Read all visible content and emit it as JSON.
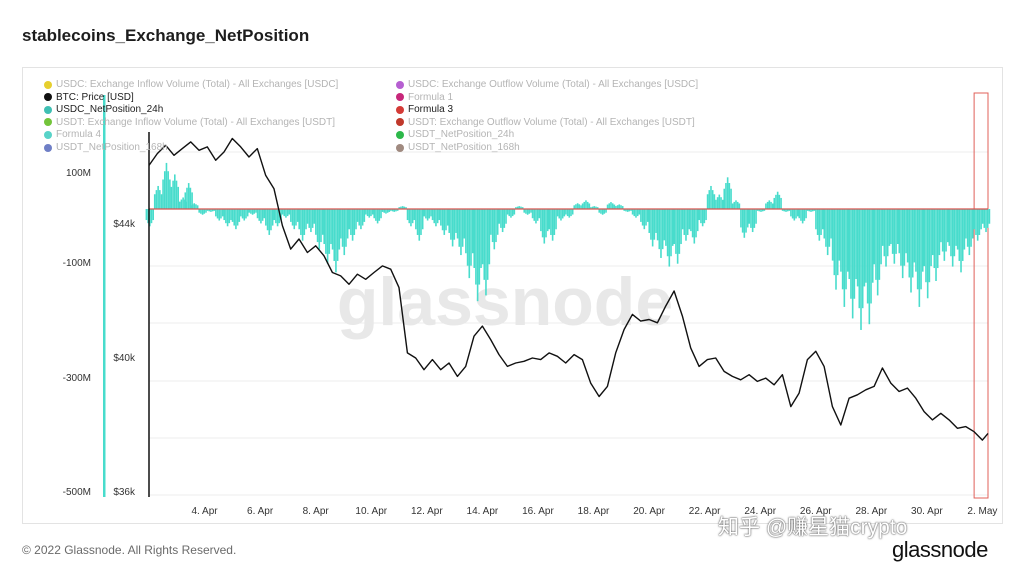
{
  "title": "stablecoins_Exchange_NetPosition",
  "footer": "© 2022 Glassnode. All Rights Reserved.",
  "brand": "glassnode",
  "watermark": "glassnode",
  "overlay_text": "知乎 @赚星猫crypto",
  "legend": [
    {
      "label": "USDC: Exchange Inflow Volume (Total) - All Exchanges [USDC]",
      "color": "#e6cf2e",
      "active": false
    },
    {
      "label": "USDC: Exchange Outflow Volume (Total) - All Exchanges [USDC]",
      "color": "#b65fd1",
      "active": false
    },
    {
      "label": "BTC: Price [USD]",
      "color": "#111111",
      "active": true
    },
    {
      "label": "Formula 1",
      "color": "#c7277a",
      "active": false
    },
    {
      "label": "USDC_NetPosition_24h",
      "color": "#3fbfb3",
      "active": true
    },
    {
      "label": "Formula 3",
      "color": "#d43b36",
      "active": true
    },
    {
      "label": "USDT: Exchange Inflow Volume (Total) - All Exchanges [USDT]",
      "color": "#73c43a",
      "active": false
    },
    {
      "label": "USDT: Exchange Outflow Volume (Total) - All Exchanges [USDT]",
      "color": "#c0392b",
      "active": false
    },
    {
      "label": "Formula 4",
      "color": "#58d3c8",
      "active": false
    },
    {
      "label": "USDT_NetPosition_24h",
      "color": "#2db84a",
      "active": false
    },
    {
      "label": "USDT_NetPosition_168h",
      "color": "#6f7fc6",
      "active": false
    },
    {
      "label": "USDT_NetPosition_168h",
      "color": "#a08a80",
      "active": false
    }
  ],
  "colors": {
    "bars": "#48dccc",
    "price": "#111111",
    "zero_line": "#d9534f",
    "highlight": "#e0605a",
    "grid": "#ececec"
  },
  "chart_data": {
    "type": "bar",
    "x_ticks": [
      "4. Apr",
      "6. Apr",
      "8. Apr",
      "10. Apr",
      "12. Apr",
      "14. Apr",
      "16. Apr",
      "18. Apr",
      "20. Apr",
      "22. Apr",
      "24. Apr",
      "26. Apr",
      "28. Apr",
      "30. Apr",
      "2. May"
    ],
    "y_left_ticks": [
      "100M",
      "-100M",
      "-300M",
      "-500M"
    ],
    "y_right_ticks": [
      "$44k",
      "$40k",
      "$36k"
    ],
    "y_left_range": [
      -500000000,
      150000000
    ],
    "y_right_range": [
      36000,
      48000
    ],
    "x_range_days": [
      2.0,
      32.2
    ],
    "grid": true,
    "highlight_range_days": [
      31.7,
      33.2
    ],
    "series": [
      {
        "name": "USDC_NetPosition_24h",
        "type": "bar",
        "points": [
          [
            2.0,
            -30
          ],
          [
            2.3,
            40
          ],
          [
            2.6,
            80
          ],
          [
            2.9,
            60
          ],
          [
            3.2,
            20
          ],
          [
            3.4,
            45
          ],
          [
            3.6,
            10
          ],
          [
            3.9,
            -10
          ],
          [
            4.2,
            -5
          ],
          [
            4.5,
            -20
          ],
          [
            4.8,
            -30
          ],
          [
            5.1,
            -35
          ],
          [
            5.4,
            -20
          ],
          [
            5.7,
            -10
          ],
          [
            6.0,
            -25
          ],
          [
            6.3,
            -45
          ],
          [
            6.6,
            -30
          ],
          [
            6.9,
            -15
          ],
          [
            7.2,
            -35
          ],
          [
            7.5,
            -55
          ],
          [
            7.8,
            -40
          ],
          [
            8.1,
            -70
          ],
          [
            8.4,
            -95
          ],
          [
            8.7,
            -110
          ],
          [
            9.0,
            -80
          ],
          [
            9.3,
            -55
          ],
          [
            9.6,
            -35
          ],
          [
            9.9,
            -15
          ],
          [
            10.2,
            -25
          ],
          [
            10.5,
            -8
          ],
          [
            10.8,
            -5
          ],
          [
            11.1,
            5
          ],
          [
            11.4,
            -30
          ],
          [
            11.7,
            -55
          ],
          [
            12.0,
            -20
          ],
          [
            12.3,
            -30
          ],
          [
            12.6,
            -45
          ],
          [
            12.9,
            -65
          ],
          [
            13.2,
            -80
          ],
          [
            13.5,
            -120
          ],
          [
            13.8,
            -160
          ],
          [
            14.1,
            -150
          ],
          [
            14.4,
            -70
          ],
          [
            14.7,
            -40
          ],
          [
            15.0,
            -15
          ],
          [
            15.3,
            5
          ],
          [
            15.6,
            -10
          ],
          [
            15.9,
            -25
          ],
          [
            16.2,
            -60
          ],
          [
            16.5,
            -55
          ],
          [
            16.8,
            -20
          ],
          [
            17.1,
            -15
          ],
          [
            17.4,
            10
          ],
          [
            17.7,
            15
          ],
          [
            18.0,
            5
          ],
          [
            18.3,
            -10
          ],
          [
            18.6,
            12
          ],
          [
            18.9,
            8
          ],
          [
            19.2,
            -5
          ],
          [
            19.5,
            -15
          ],
          [
            19.8,
            -35
          ],
          [
            20.1,
            -65
          ],
          [
            20.4,
            -85
          ],
          [
            20.7,
            -100
          ],
          [
            21.0,
            -95
          ],
          [
            21.3,
            -55
          ],
          [
            21.6,
            -60
          ],
          [
            21.9,
            -30
          ],
          [
            22.2,
            40
          ],
          [
            22.5,
            25
          ],
          [
            22.8,
            55
          ],
          [
            23.1,
            15
          ],
          [
            23.4,
            -50
          ],
          [
            23.7,
            -40
          ],
          [
            24.0,
            -5
          ],
          [
            24.3,
            15
          ],
          [
            24.6,
            30
          ],
          [
            24.9,
            -5
          ],
          [
            25.2,
            -20
          ],
          [
            25.5,
            -25
          ],
          [
            25.8,
            -5
          ],
          [
            26.1,
            -55
          ],
          [
            26.4,
            -80
          ],
          [
            26.7,
            -140
          ],
          [
            27.0,
            -170
          ],
          [
            27.3,
            -190
          ],
          [
            27.6,
            -210
          ],
          [
            27.9,
            -200
          ],
          [
            28.2,
            -150
          ],
          [
            28.5,
            -100
          ],
          [
            28.8,
            -95
          ],
          [
            29.1,
            -120
          ],
          [
            29.4,
            -145
          ],
          [
            29.7,
            -170
          ],
          [
            30.0,
            -155
          ],
          [
            30.3,
            -125
          ],
          [
            30.6,
            -90
          ],
          [
            30.9,
            -100
          ],
          [
            31.2,
            -110
          ],
          [
            31.5,
            -80
          ],
          [
            31.8,
            -55
          ],
          [
            32.1,
            -40
          ]
        ]
      },
      {
        "name": "BTC: Price [USD]",
        "type": "line",
        "points": [
          [
            2.0,
            45900
          ],
          [
            2.3,
            46250
          ],
          [
            2.6,
            46500
          ],
          [
            2.9,
            46200
          ],
          [
            3.2,
            46400
          ],
          [
            3.5,
            46600
          ],
          [
            3.8,
            46350
          ],
          [
            4.1,
            46450
          ],
          [
            4.4,
            46050
          ],
          [
            4.7,
            46300
          ],
          [
            5.0,
            46700
          ],
          [
            5.3,
            46450
          ],
          [
            5.6,
            46150
          ],
          [
            5.9,
            46400
          ],
          [
            6.2,
            45600
          ],
          [
            6.5,
            45200
          ],
          [
            6.8,
            44100
          ],
          [
            7.1,
            43400
          ],
          [
            7.4,
            43700
          ],
          [
            7.7,
            43300
          ],
          [
            8.0,
            43500
          ],
          [
            8.3,
            43200
          ],
          [
            8.6,
            42700
          ],
          [
            8.9,
            42600
          ],
          [
            9.2,
            42350
          ],
          [
            9.5,
            42650
          ],
          [
            9.8,
            42500
          ],
          [
            10.1,
            42700
          ],
          [
            10.4,
            42900
          ],
          [
            10.7,
            42800
          ],
          [
            11.0,
            42250
          ],
          [
            11.3,
            40300
          ],
          [
            11.6,
            40150
          ],
          [
            11.9,
            39800
          ],
          [
            12.2,
            40100
          ],
          [
            12.5,
            39800
          ],
          [
            12.8,
            40000
          ],
          [
            13.1,
            39600
          ],
          [
            13.4,
            39900
          ],
          [
            13.7,
            40800
          ],
          [
            14.0,
            41100
          ],
          [
            14.3,
            40700
          ],
          [
            14.6,
            40250
          ],
          [
            14.9,
            39900
          ],
          [
            15.2,
            40000
          ],
          [
            15.5,
            40050
          ],
          [
            15.8,
            40150
          ],
          [
            16.1,
            40100
          ],
          [
            16.4,
            40300
          ],
          [
            16.7,
            40200
          ],
          [
            17.0,
            40000
          ],
          [
            17.3,
            40250
          ],
          [
            17.6,
            40100
          ],
          [
            17.9,
            39400
          ],
          [
            18.2,
            39000
          ],
          [
            18.5,
            39300
          ],
          [
            18.8,
            40300
          ],
          [
            19.1,
            41000
          ],
          [
            19.4,
            41450
          ],
          [
            19.7,
            41250
          ],
          [
            20.0,
            41300
          ],
          [
            20.3,
            41200
          ],
          [
            20.6,
            41700
          ],
          [
            20.9,
            42150
          ],
          [
            21.2,
            41400
          ],
          [
            21.5,
            40450
          ],
          [
            21.8,
            39900
          ],
          [
            22.1,
            40100
          ],
          [
            22.4,
            40150
          ],
          [
            22.7,
            39750
          ],
          [
            23.0,
            39600
          ],
          [
            23.3,
            39500
          ],
          [
            23.6,
            39650
          ],
          [
            23.9,
            39450
          ],
          [
            24.2,
            39550
          ],
          [
            24.5,
            39350
          ],
          [
            24.8,
            39650
          ],
          [
            25.1,
            38700
          ],
          [
            25.4,
            39100
          ],
          [
            25.7,
            40100
          ],
          [
            26.0,
            40350
          ],
          [
            26.3,
            39900
          ],
          [
            26.6,
            38700
          ],
          [
            26.9,
            38150
          ],
          [
            27.2,
            38950
          ],
          [
            27.5,
            39050
          ],
          [
            27.8,
            39200
          ],
          [
            28.1,
            39300
          ],
          [
            28.4,
            39850
          ],
          [
            28.7,
            39400
          ],
          [
            29.0,
            39150
          ],
          [
            29.3,
            39250
          ],
          [
            29.6,
            38950
          ],
          [
            29.9,
            38550
          ],
          [
            30.2,
            38300
          ],
          [
            30.5,
            38500
          ],
          [
            30.8,
            38300
          ],
          [
            31.1,
            38050
          ],
          [
            31.4,
            38100
          ],
          [
            31.7,
            37950
          ],
          [
            32.0,
            37700
          ],
          [
            32.2,
            37900
          ]
        ]
      },
      {
        "name": "Formula 3",
        "type": "line",
        "points": [
          [
            2.0,
            0
          ],
          [
            32.2,
            0
          ]
        ]
      }
    ]
  }
}
